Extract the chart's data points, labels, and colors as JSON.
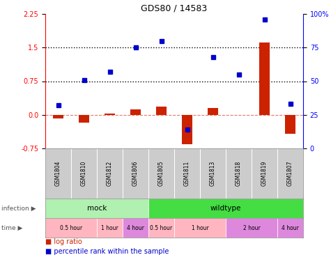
{
  "title": "GDS80 / 14583",
  "samples": [
    "GSM1804",
    "GSM1810",
    "GSM1812",
    "GSM1806",
    "GSM1805",
    "GSM1811",
    "GSM1813",
    "GSM1818",
    "GSM1819",
    "GSM1807"
  ],
  "log_ratio": [
    -0.08,
    -0.18,
    0.02,
    0.12,
    0.18,
    -0.65,
    0.15,
    -0.01,
    1.62,
    -0.42
  ],
  "percentile_rank": [
    32,
    51,
    57,
    75,
    80,
    14,
    68,
    55,
    96,
    33
  ],
  "left_yticks": [
    -0.75,
    0.0,
    0.75,
    1.5,
    2.25
  ],
  "right_yticks": [
    0,
    25,
    50,
    75,
    100
  ],
  "ylim_left": [
    -0.75,
    2.25
  ],
  "ylim_right": [
    0,
    100
  ],
  "hline_dotted": [
    0.75,
    1.5
  ],
  "hline_dash": 0.0,
  "infection_groups": [
    {
      "label": "mock",
      "start": 0,
      "end": 4,
      "color": "#b0f0b0"
    },
    {
      "label": "wildtype",
      "start": 4,
      "end": 10,
      "color": "#44dd44"
    }
  ],
  "time_groups": [
    {
      "label": "0.5 hour",
      "start": 0,
      "end": 2,
      "color": "#ffb6c1"
    },
    {
      "label": "1 hour",
      "start": 2,
      "end": 3,
      "color": "#ffb6c1"
    },
    {
      "label": "4 hour",
      "start": 3,
      "end": 4,
      "color": "#dd88dd"
    },
    {
      "label": "0.5 hour",
      "start": 4,
      "end": 5,
      "color": "#ffb6c1"
    },
    {
      "label": "1 hour",
      "start": 5,
      "end": 7,
      "color": "#ffb6c1"
    },
    {
      "label": "2 hour",
      "start": 7,
      "end": 9,
      "color": "#dd88dd"
    },
    {
      "label": "4 hour",
      "start": 9,
      "end": 10,
      "color": "#dd88dd"
    }
  ],
  "bar_color": "#cc2200",
  "dot_color": "#0000cc",
  "sample_bg_color": "#cccccc",
  "background_color": "#ffffff",
  "legend_items": [
    {
      "label": "log ratio",
      "color": "#cc2200"
    },
    {
      "label": "percentile rank within the sample",
      "color": "#0000cc"
    }
  ],
  "infection_arrow": "infection ▶",
  "time_arrow": "time ▶"
}
